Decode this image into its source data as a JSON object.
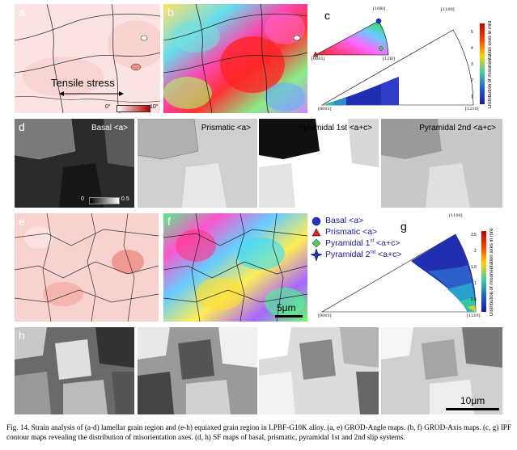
{
  "panels": {
    "a": "a",
    "b": "b",
    "c": "c",
    "d": "d",
    "e": "e",
    "f": "f",
    "g": "g",
    "h": "h"
  },
  "panel_a": {
    "annotation": "Tensile stress",
    "scale_min": "0°",
    "scale_max": "10°"
  },
  "panel_c": {
    "ipf_corner_top": "[10ī0]",
    "ipf_corner_left": "[0001]",
    "ipf_corner_right": "[12ī0]"
  },
  "contour_c": {
    "corner_top": "[1100]",
    "corner_left": "[0001]",
    "corner_right": "[1210]",
    "colorbar_label": "Distribution of misorientation axes in mrd",
    "ticks": [
      "5",
      "4",
      "3",
      "2",
      "1"
    ]
  },
  "slip_systems": {
    "basal": "Basal <a>",
    "prismatic": "Prismatic <a>",
    "pyramidal1": "Pyramidal 1st <a+c>",
    "pyramidal2": "Pyramidal 2nd <a+c>",
    "sf_scale_min": "0",
    "sf_scale_max": "0.5"
  },
  "legend": {
    "basal": "Basal <a>",
    "prismatic": "Prismatic <a>",
    "pyr1_pre": "Pyramidal 1",
    "pyr1_sup": "st",
    "pyr1_post": " <a+c>",
    "pyr2_pre": "Pyramidal 2",
    "pyr2_sup": "nd",
    "pyr2_post": " <a+c>",
    "colors": {
      "basal": "#2233cc",
      "prismatic": "#dd2222",
      "pyr1": "#55cc55",
      "pyr2": "#2233cc"
    }
  },
  "contour_g": {
    "corner_top": "[1100]",
    "corner_left": "[0001]",
    "corner_right": "[1210]",
    "colorbar_label": "Distribution of misorientation axes in mrd",
    "ticks": [
      "2.5",
      "2",
      "1.5",
      "1",
      "0.5"
    ]
  },
  "scale_bars": {
    "f": "5μm",
    "h": "10μm"
  },
  "caption": "Fig. 14. Strain analysis of (a-d) lamellar grain region and (e-h) equiaxed grain region in LPBF-G10K alloy. (a, e) GROD-Angle maps. (b, f) GROD-Axis maps. (c, g) IPF contour maps revealing the distribution of misorientation axes. (d, h) SF maps of basal, prismatic, pyramidal 1st and 2nd slip systems."
}
